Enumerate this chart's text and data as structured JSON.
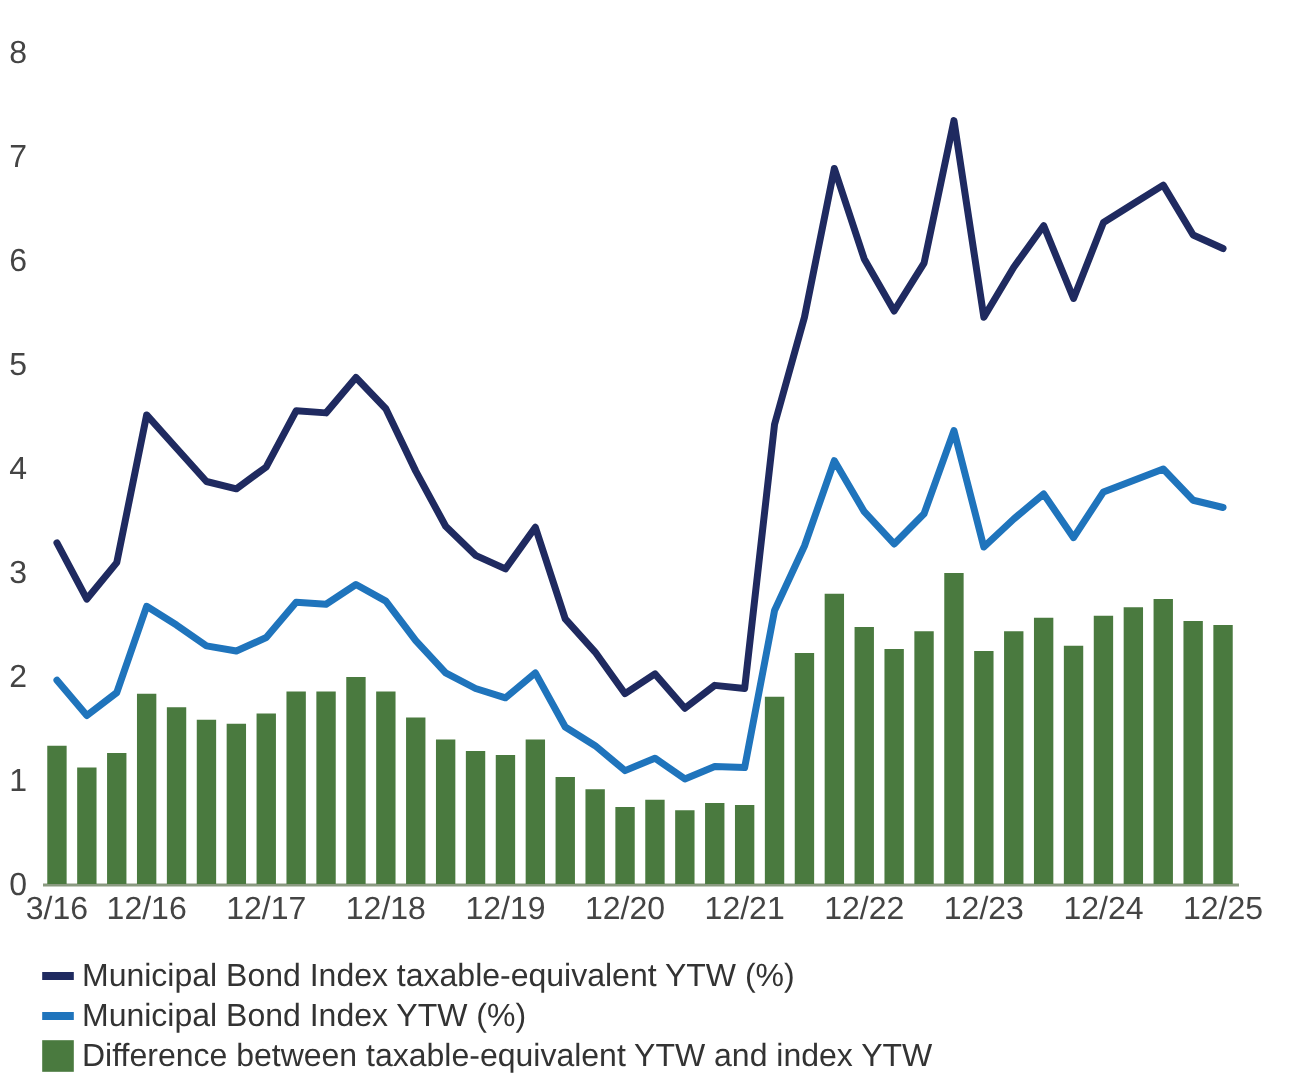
{
  "chart_data": {
    "type": "line",
    "categories": [
      "3/16",
      null,
      null,
      "12/16",
      null,
      null,
      null,
      "12/17",
      null,
      null,
      null,
      "12/18",
      null,
      null,
      null,
      "12/19",
      null,
      null,
      null,
      "12/20",
      null,
      null,
      null,
      "12/21",
      null,
      null,
      null,
      "12/22",
      null,
      null,
      null,
      "12/23",
      null,
      null,
      null,
      "12/24",
      null,
      null,
      null,
      "12/25"
    ],
    "series": [
      {
        "name": "Municipal Bond Index taxable-equivalent YTW (%)",
        "color": "#1f2a60",
        "values": [
          3.28,
          2.74,
          3.09,
          4.51,
          4.19,
          3.87,
          3.8,
          4.01,
          4.55,
          4.53,
          4.87,
          4.57,
          3.97,
          3.44,
          3.16,
          3.03,
          3.43,
          2.55,
          2.23,
          1.83,
          2.02,
          1.69,
          1.91,
          1.88,
          4.42,
          5.45,
          6.88,
          6.01,
          5.51,
          5.97,
          7.34,
          5.45,
          5.93,
          6.33,
          5.63,
          6.36,
          6.54,
          6.72,
          6.24,
          6.11
        ]
      },
      {
        "name": "Municipal Bond Index YTW (%)",
        "color": "#1f74bc",
        "values": [
          1.96,
          1.62,
          1.84,
          2.67,
          2.49,
          2.29,
          2.24,
          2.37,
          2.71,
          2.69,
          2.88,
          2.72,
          2.34,
          2.03,
          1.88,
          1.79,
          2.03,
          1.51,
          1.33,
          1.09,
          1.21,
          1.01,
          1.13,
          1.12,
          2.63,
          3.25,
          4.07,
          3.58,
          3.27,
          3.56,
          4.36,
          3.24,
          3.51,
          3.75,
          3.33,
          3.77,
          3.88,
          3.99,
          3.69,
          3.62
        ]
      },
      {
        "name": "Difference between taxable-equivalent YTW and index YTW",
        "type": "bar",
        "color": "#4a7a3f",
        "values": [
          1.33,
          1.12,
          1.26,
          1.83,
          1.7,
          1.58,
          1.54,
          1.64,
          1.85,
          1.85,
          1.99,
          1.85,
          1.6,
          1.39,
          1.28,
          1.24,
          1.39,
          1.03,
          0.91,
          0.74,
          0.81,
          0.71,
          0.78,
          0.76,
          1.8,
          2.22,
          2.79,
          2.47,
          2.26,
          2.43,
          2.99,
          2.24,
          2.43,
          2.56,
          2.29,
          2.58,
          2.66,
          2.74,
          2.53,
          2.49
        ]
      }
    ],
    "ylim": [
      0,
      8
    ],
    "yticks": [
      0,
      1,
      2,
      3,
      4,
      5,
      6,
      7,
      8
    ],
    "grid": false,
    "legend": "bottom"
  }
}
